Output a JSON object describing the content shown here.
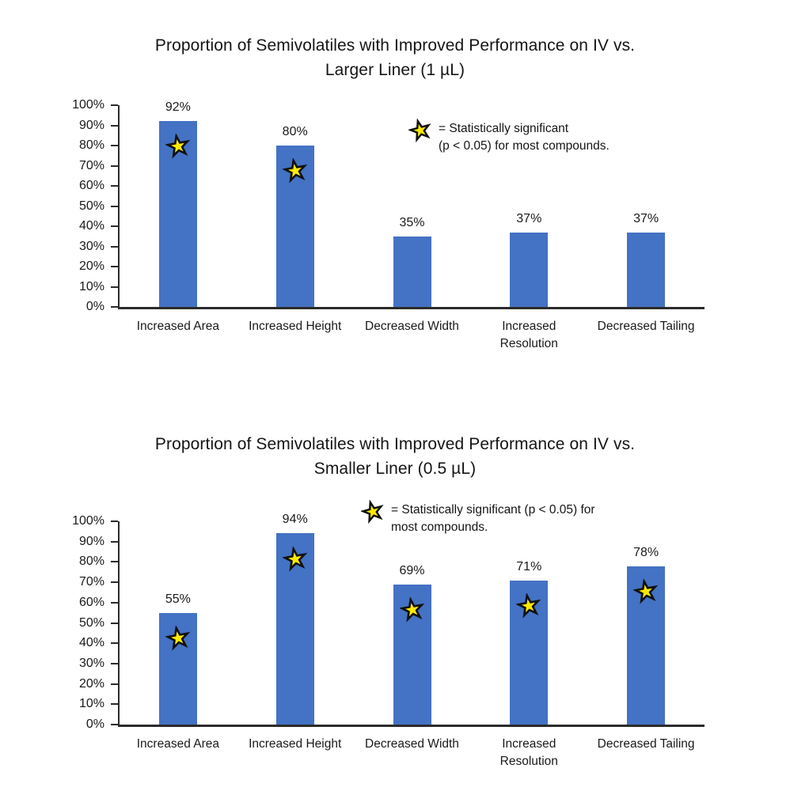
{
  "figure": {
    "background": "#ffffff",
    "text_color": "#151515",
    "axis_color": "#2b2b2b"
  },
  "chart_data": [
    {
      "type": "bar",
      "title": "Proportion of Semivolatiles with Improved Performance on IV vs. Larger Liner (1 µL)",
      "title_lines": [
        "Proportion of Semivolatiles with Improved Performance on IV vs.",
        "Larger Liner (1 µL)"
      ],
      "categories": [
        "Increased Area",
        "Increased Height",
        "Decreased Width",
        "Increased Resolution",
        "Decreased Tailing"
      ],
      "values": [
        92,
        80,
        35,
        37,
        37
      ],
      "value_labels": [
        "92%",
        "80%",
        "35%",
        "37%",
        "37%"
      ],
      "significant": [
        true,
        true,
        false,
        false,
        false
      ],
      "legend_lines": [
        "= Statistically significant",
        "(p < 0.05) for most compounds."
      ],
      "legend_symbol": "star-icon",
      "legend_position": "inside-upper-right",
      "xlabel": "",
      "ylabel": "",
      "ylim": [
        0,
        100
      ],
      "ytick_labels": [
        "100%",
        "90%",
        "80%",
        "70%",
        "60%",
        "50%",
        "40%",
        "30%",
        "20%",
        "10%",
        "0%"
      ],
      "grid": false,
      "bar_color": "#4472C4",
      "star_fill": "#FFEB00",
      "star_stroke": "#111111"
    },
    {
      "type": "bar",
      "title": "Proportion of Semivolatiles with Improved Performance on IV vs. Smaller Liner (0.5 µL)",
      "title_lines": [
        "Proportion of Semivolatiles with Improved Performance on IV vs.",
        "Smaller Liner (0.5 µL)"
      ],
      "categories": [
        "Increased Area",
        "Increased Height",
        "Decreased Width",
        "Increased Resolution",
        "Decreased Tailing"
      ],
      "values": [
        55,
        94,
        69,
        71,
        78
      ],
      "value_labels": [
        "55%",
        "94%",
        "69%",
        "71%",
        "78%"
      ],
      "significant": [
        true,
        true,
        true,
        true,
        true
      ],
      "legend_lines": [
        "= Statistically significant (p < 0.05) for",
        "most compounds."
      ],
      "legend_symbol": "star-icon",
      "legend_position": "inside-upper-right",
      "xlabel": "",
      "ylabel": "",
      "ylim": [
        0,
        100
      ],
      "ytick_labels": [
        "100%",
        "90%",
        "80%",
        "70%",
        "60%",
        "50%",
        "40%",
        "30%",
        "20%",
        "10%",
        "0%"
      ],
      "grid": false,
      "bar_color": "#4472C4",
      "star_fill": "#FFEB00",
      "star_stroke": "#111111"
    }
  ]
}
